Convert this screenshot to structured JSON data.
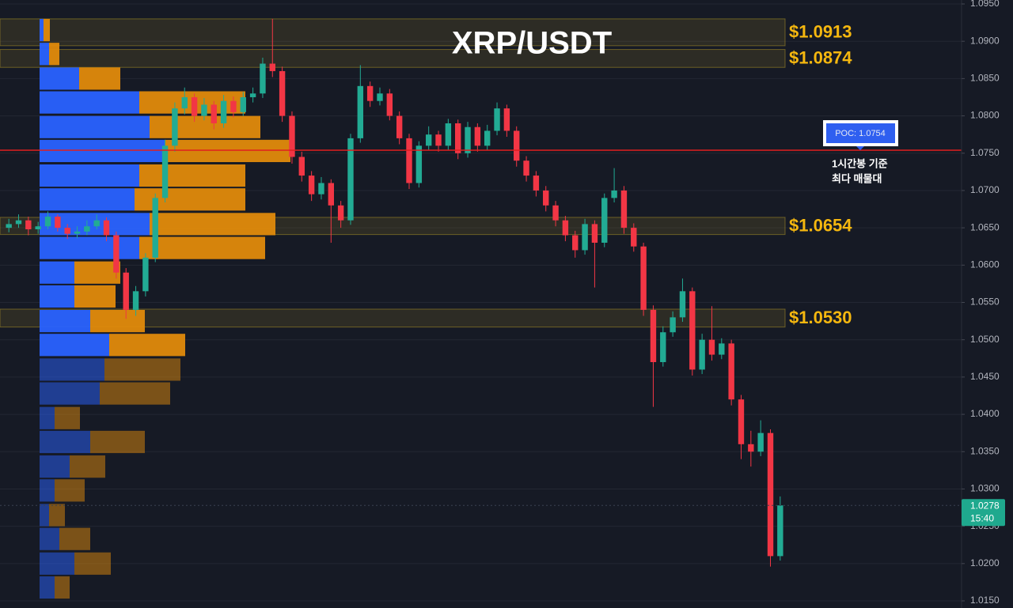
{
  "chart_data": {
    "type": "candlestick",
    "title": "XRP/USDT",
    "ylim": [
      1.015,
      1.095
    ],
    "yticks": [
      {
        "value": 1.095,
        "label": "1.0950"
      },
      {
        "value": 1.09,
        "label": "1.0900"
      },
      {
        "value": 1.085,
        "label": "1.0850"
      },
      {
        "value": 1.08,
        "label": "1.0800"
      },
      {
        "value": 1.075,
        "label": "1.0750"
      },
      {
        "value": 1.07,
        "label": "1.0700"
      },
      {
        "value": 1.065,
        "label": "1.0650"
      },
      {
        "value": 1.06,
        "label": "1.0600"
      },
      {
        "value": 1.055,
        "label": "1.0550"
      },
      {
        "value": 1.05,
        "label": "1.0500"
      },
      {
        "value": 1.045,
        "label": "1.0450"
      },
      {
        "value": 1.04,
        "label": "1.0400"
      },
      {
        "value": 1.035,
        "label": "1.0350"
      },
      {
        "value": 1.03,
        "label": "1.0300"
      },
      {
        "value": 1.025,
        "label": "1.0250"
      },
      {
        "value": 1.02,
        "label": "1.0200"
      },
      {
        "value": 1.015,
        "label": "1.0150"
      }
    ],
    "grid": true,
    "up_color": "#22ab94",
    "down_color": "#f23645",
    "open": [
      1.065,
      1.0655,
      1.066,
      1.0648,
      1.0652,
      1.0665,
      1.065,
      1.0642,
      1.0645,
      1.0652,
      1.066,
      1.064,
      1.059,
      1.054,
      1.0565,
      1.061,
      1.069,
      1.076,
      1.081,
      1.0825,
      1.08,
      1.0815,
      1.079,
      1.082,
      1.0805,
      1.0825,
      1.083,
      1.087,
      1.086,
      1.08,
      1.0745,
      1.072,
      1.0695,
      1.071,
      1.068,
      1.066,
      1.077,
      1.084,
      1.082,
      1.083,
      1.08,
      1.077,
      1.071,
      1.076,
      1.0775,
      1.076,
      1.079,
      1.075,
      1.0785,
      1.076,
      1.078,
      1.081,
      1.078,
      1.074,
      1.072,
      1.07,
      1.068,
      1.066,
      1.064,
      1.062,
      1.0655,
      1.063,
      1.069,
      1.07,
      1.065,
      1.0625,
      1.054,
      1.047,
      1.051,
      1.053,
      1.0565,
      1.046,
      1.05,
      1.048,
      1.0495,
      1.042,
      1.036,
      1.035,
      1.0375,
      1.021
    ],
    "high": [
      1.0662,
      1.0668,
      1.0665,
      1.0658,
      1.0672,
      1.0668,
      1.0655,
      1.0652,
      1.066,
      1.0668,
      1.0664,
      1.0645,
      1.0596,
      1.0572,
      1.0616,
      1.0696,
      1.0768,
      1.0818,
      1.0838,
      1.083,
      1.0824,
      1.082,
      1.0828,
      1.0826,
      1.0832,
      1.0838,
      1.0878,
      1.093,
      1.0866,
      1.0806,
      1.0752,
      1.0726,
      1.0718,
      1.0715,
      1.0686,
      1.0776,
      1.0868,
      1.0846,
      1.0838,
      1.0836,
      1.0806,
      1.0776,
      1.0766,
      1.0786,
      1.078,
      1.0796,
      1.0795,
      1.0792,
      1.079,
      1.0788,
      1.0818,
      1.0815,
      1.0786,
      1.0746,
      1.0726,
      1.0706,
      1.0686,
      1.0666,
      1.0646,
      1.0662,
      1.066,
      1.0696,
      1.073,
      1.0706,
      1.0656,
      1.063,
      1.0546,
      1.0518,
      1.0538,
      1.0582,
      1.057,
      1.0508,
      1.0545,
      1.0502,
      1.05,
      1.0426,
      1.0378,
      1.0392,
      1.038,
      1.029
    ],
    "low": [
      1.0644,
      1.065,
      1.064,
      1.0642,
      1.0648,
      1.0645,
      1.0635,
      1.0636,
      1.064,
      1.0648,
      1.0632,
      1.0582,
      1.0528,
      1.0532,
      1.0558,
      1.0604,
      1.0684,
      1.0752,
      1.0802,
      1.0792,
      1.0794,
      1.0782,
      1.0784,
      1.0798,
      1.08,
      1.0818,
      1.0824,
      1.0852,
      1.0792,
      1.0736,
      1.0712,
      1.0686,
      1.0688,
      1.063,
      1.065,
      1.0654,
      1.0764,
      1.0812,
      1.0814,
      1.0794,
      1.0762,
      1.0702,
      1.0704,
      1.0754,
      1.0752,
      1.0754,
      1.0742,
      1.0744,
      1.0752,
      1.0754,
      1.0774,
      1.0772,
      1.0732,
      1.0712,
      1.0692,
      1.0672,
      1.0652,
      1.0632,
      1.061,
      1.0614,
      1.057,
      1.0624,
      1.0684,
      1.0642,
      1.0618,
      1.0532,
      1.041,
      1.0464,
      1.0504,
      1.0524,
      1.0452,
      1.0454,
      1.0472,
      1.0474,
      1.0412,
      1.034,
      1.033,
      1.0344,
      1.0196,
      1.0204
    ],
    "close": [
      1.0655,
      1.066,
      1.0648,
      1.0652,
      1.0665,
      1.065,
      1.0642,
      1.0645,
      1.0652,
      1.066,
      1.064,
      1.059,
      1.054,
      1.0565,
      1.061,
      1.069,
      1.076,
      1.081,
      1.0825,
      1.08,
      1.0815,
      1.079,
      1.082,
      1.0805,
      1.0825,
      1.083,
      1.087,
      1.086,
      1.08,
      1.0745,
      1.072,
      1.0695,
      1.071,
      1.068,
      1.066,
      1.077,
      1.084,
      1.082,
      1.083,
      1.08,
      1.077,
      1.071,
      1.076,
      1.0775,
      1.076,
      1.079,
      1.075,
      1.0785,
      1.076,
      1.078,
      1.081,
      1.078,
      1.074,
      1.072,
      1.07,
      1.068,
      1.066,
      1.064,
      1.062,
      1.0655,
      1.063,
      1.069,
      1.07,
      1.065,
      1.0625,
      1.054,
      1.047,
      1.051,
      1.053,
      1.0565,
      1.046,
      1.05,
      1.048,
      1.0495,
      1.042,
      1.036,
      1.035,
      1.0375,
      1.021,
      1.0278
    ],
    "volume_profile": {
      "levels": [
        1.0915,
        1.0883,
        1.085,
        1.0818,
        1.0785,
        1.0753,
        1.072,
        1.0688,
        1.0655,
        1.0623,
        1.059,
        1.0558,
        1.0525,
        1.0493,
        1.046,
        1.0428,
        1.0395,
        1.0363,
        1.033,
        1.0298,
        1.0265,
        1.0233,
        1.02,
        1.0168
      ],
      "buy": [
        5,
        12,
        50,
        126,
        139,
        158,
        126,
        120,
        139,
        126,
        44,
        44,
        64,
        88,
        82,
        76,
        19,
        64,
        38,
        19,
        12,
        25,
        44,
        19
      ],
      "sell": [
        8,
        13,
        52,
        134,
        140,
        159,
        134,
        140,
        159,
        159,
        58,
        52,
        69,
        96,
        96,
        89,
        32,
        69,
        45,
        38,
        20,
        39,
        46,
        19
      ],
      "buy_color": "#2962ff",
      "sell_color": "#e08a0b"
    },
    "zones": [
      {
        "label": "$1.0913",
        "low": 1.0894,
        "high": 1.093
      },
      {
        "label": "$1.0874",
        "low": 1.0865,
        "high": 1.0889
      },
      {
        "label": "$1.0654",
        "low": 1.0641,
        "high": 1.0664
      },
      {
        "label": "$1.0530",
        "low": 1.0517,
        "high": 1.0541
      }
    ],
    "poc": {
      "value": 1.0754,
      "label": "POC: 1.0754",
      "color": "#e01e1e"
    },
    "annotation": [
      "1시간봉 기준",
      "최다 매물대"
    ],
    "last_price": {
      "value": 1.0278,
      "label": "1.0278"
    },
    "countdown": "15:40"
  }
}
